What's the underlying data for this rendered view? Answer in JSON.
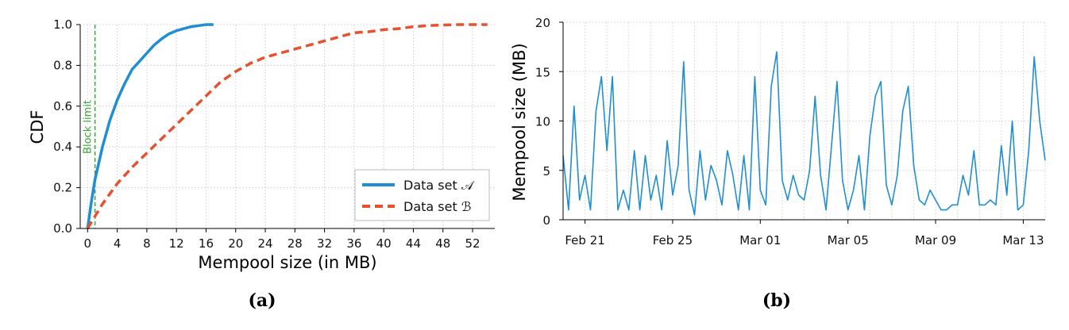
{
  "chart_data": [
    {
      "type": "line",
      "caption": "(a)",
      "xlabel": "Mempool size (in MB)",
      "ylabel": "CDF",
      "xlim": [
        -1,
        55
      ],
      "ylim": [
        0,
        1
      ],
      "xticks": [
        0,
        4,
        8,
        12,
        16,
        20,
        24,
        28,
        32,
        36,
        40,
        44,
        48,
        52
      ],
      "yticks": [
        0.0,
        0.2,
        0.4,
        0.6,
        0.8,
        1.0
      ],
      "ytick_labels": [
        "0.0",
        "0.2",
        "0.4",
        "0.6",
        "0.8",
        "1.0"
      ],
      "grid": true,
      "legend_position": "bottom-right",
      "annotation": {
        "text": "Block limit",
        "x": 1
      },
      "series": [
        {
          "name": "Data set 𝒜",
          "color": "#1f8fd1",
          "style": "solid",
          "x": [
            0,
            0.5,
            1,
            1.5,
            2,
            3,
            4,
            5,
            6,
            7,
            8,
            9,
            10,
            11,
            12,
            13,
            14,
            15,
            16,
            17
          ],
          "y": [
            0.0,
            0.13,
            0.24,
            0.32,
            0.4,
            0.53,
            0.63,
            0.71,
            0.78,
            0.82,
            0.86,
            0.9,
            0.93,
            0.955,
            0.97,
            0.98,
            0.99,
            0.995,
            1.0,
            1.0
          ]
        },
        {
          "name": "Data set ℬ",
          "color": "#e8502f",
          "style": "dashed",
          "x": [
            0,
            1,
            2,
            3,
            4,
            6,
            8,
            10,
            12,
            14,
            16,
            18,
            20,
            22,
            24,
            26,
            28,
            30,
            32,
            34,
            36,
            38,
            40,
            42,
            44,
            46,
            48,
            50,
            52,
            54
          ],
          "y": [
            0.0,
            0.06,
            0.12,
            0.17,
            0.22,
            0.3,
            0.37,
            0.44,
            0.51,
            0.58,
            0.65,
            0.72,
            0.77,
            0.81,
            0.84,
            0.86,
            0.88,
            0.9,
            0.92,
            0.94,
            0.96,
            0.965,
            0.975,
            0.98,
            0.99,
            0.995,
            0.998,
            1.0,
            1.0,
            1.0
          ]
        }
      ]
    },
    {
      "type": "line",
      "caption": "(b)",
      "xlabel": "",
      "ylabel": "Mempool size (MB)",
      "xlim": [
        "2021-02-20",
        "2021-03-14"
      ],
      "ylim": [
        0,
        20
      ],
      "xticks": [
        "Feb 21",
        "Feb 25",
        "Mar 01",
        "Mar 05",
        "Mar 09",
        "Mar 13"
      ],
      "xtick_dates": [
        "2021-02-21",
        "2021-02-25",
        "2021-03-01",
        "2021-03-05",
        "2021-03-09",
        "2021-03-13"
      ],
      "yticks": [
        0,
        5,
        10,
        15,
        20
      ],
      "grid": true,
      "series": [
        {
          "color": "#1f8fd1",
          "x": [
            "2021-02-20T00:00",
            "2021-02-20T06:00",
            "2021-02-20T12:00",
            "2021-02-20T18:00",
            "2021-02-21T00:00",
            "2021-02-21T06:00",
            "2021-02-21T12:00",
            "2021-02-21T18:00",
            "2021-02-22T00:00",
            "2021-02-22T06:00",
            "2021-02-22T12:00",
            "2021-02-22T18:00",
            "2021-02-23T00:00",
            "2021-02-23T06:00",
            "2021-02-23T12:00",
            "2021-02-23T18:00",
            "2021-02-24T00:00",
            "2021-02-24T06:00",
            "2021-02-24T12:00",
            "2021-02-24T18:00",
            "2021-02-25T00:00",
            "2021-02-25T06:00",
            "2021-02-25T12:00",
            "2021-02-25T18:00",
            "2021-02-26T00:00",
            "2021-02-26T06:00",
            "2021-02-26T12:00",
            "2021-02-26T18:00",
            "2021-02-27T00:00",
            "2021-02-27T06:00",
            "2021-02-27T12:00",
            "2021-02-27T18:00",
            "2021-02-28T00:00",
            "2021-02-28T06:00",
            "2021-02-28T12:00",
            "2021-02-28T18:00",
            "2021-03-01T00:00",
            "2021-03-01T06:00",
            "2021-03-01T12:00",
            "2021-03-01T18:00",
            "2021-03-02T00:00",
            "2021-03-02T06:00",
            "2021-03-02T12:00",
            "2021-03-02T18:00",
            "2021-03-03T00:00",
            "2021-03-03T06:00",
            "2021-03-03T12:00",
            "2021-03-03T18:00",
            "2021-03-04T00:00",
            "2021-03-04T06:00",
            "2021-03-04T12:00",
            "2021-03-04T18:00",
            "2021-03-05T00:00",
            "2021-03-05T06:00",
            "2021-03-05T12:00",
            "2021-03-05T18:00",
            "2021-03-06T00:00",
            "2021-03-06T06:00",
            "2021-03-06T12:00",
            "2021-03-06T18:00",
            "2021-03-07T00:00",
            "2021-03-07T06:00",
            "2021-03-07T12:00",
            "2021-03-07T18:00",
            "2021-03-08T00:00",
            "2021-03-08T06:00",
            "2021-03-08T12:00",
            "2021-03-08T18:00",
            "2021-03-09T00:00",
            "2021-03-09T06:00",
            "2021-03-09T12:00",
            "2021-03-09T18:00",
            "2021-03-10T00:00",
            "2021-03-10T06:00",
            "2021-03-10T12:00",
            "2021-03-10T18:00",
            "2021-03-11T00:00",
            "2021-03-11T06:00",
            "2021-03-11T12:00",
            "2021-03-11T18:00",
            "2021-03-12T00:00",
            "2021-03-12T06:00",
            "2021-03-12T12:00",
            "2021-03-12T18:00",
            "2021-03-13T00:00",
            "2021-03-13T06:00",
            "2021-03-13T12:00",
            "2021-03-13T18:00",
            "2021-03-14T00:00"
          ],
          "y": [
            6.5,
            1.0,
            11.5,
            2.0,
            4.5,
            1.0,
            11.0,
            14.5,
            7.0,
            14.5,
            1.0,
            3.0,
            1.0,
            7.0,
            1.0,
            6.5,
            2.0,
            4.5,
            1.0,
            8.0,
            2.5,
            5.5,
            16.0,
            3.0,
            0.5,
            7.0,
            2.0,
            5.5,
            4.0,
            1.5,
            7.0,
            4.5,
            1.0,
            6.5,
            1.0,
            14.5,
            3.0,
            1.5,
            13.5,
            17.0,
            4.0,
            2.0,
            4.5,
            2.5,
            2.0,
            5.0,
            12.5,
            4.5,
            1.0,
            7.5,
            14.0,
            4.0,
            1.0,
            3.0,
            6.5,
            1.0,
            8.5,
            12.5,
            14.0,
            3.5,
            1.5,
            4.5,
            11.0,
            13.5,
            5.5,
            2.0,
            1.5,
            3.0,
            2.0,
            1.0,
            1.0,
            1.5,
            1.5,
            4.5,
            2.5,
            7.0,
            1.5,
            1.5,
            2.0,
            1.5,
            7.5,
            2.5,
            10.0,
            1.0,
            1.5,
            7.0,
            16.5,
            10.0,
            6.0
          ]
        }
      ]
    }
  ]
}
